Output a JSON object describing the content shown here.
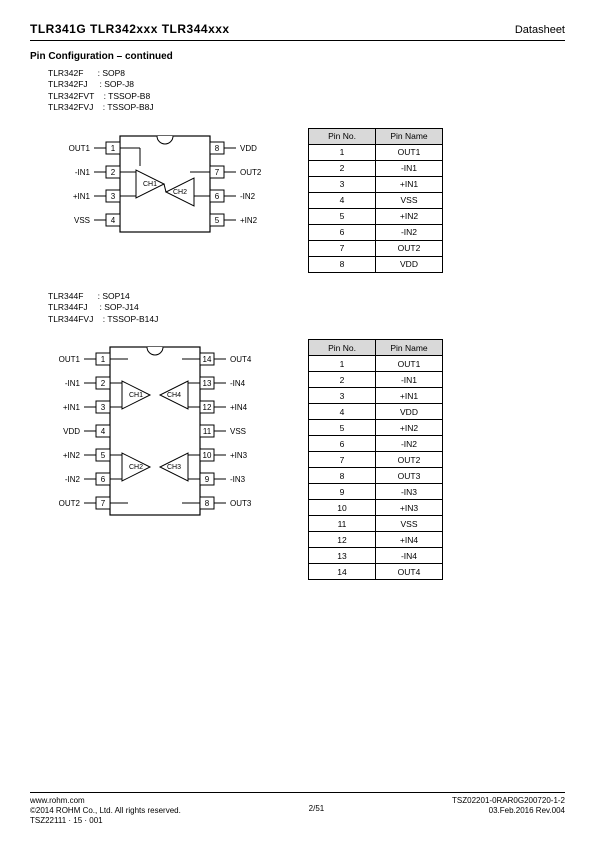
{
  "header": {
    "left": "TLR341G   TLR342xxx   TLR344xxx",
    "right": "Datasheet"
  },
  "section_title": "Pin Configuration – continued",
  "packages8": [
    {
      "part": "TLR342F",
      "pkg": "SOP8"
    },
    {
      "part": "TLR342FJ",
      "pkg": "SOP-J8"
    },
    {
      "part": "TLR342FVT",
      "pkg": "TSSOP-B8"
    },
    {
      "part": "TLR342FVJ",
      "pkg": "TSSOP-B8J"
    }
  ],
  "packages14": [
    {
      "part": "TLR344F",
      "pkg": "SOP14"
    },
    {
      "part": "TLR344FJ",
      "pkg": "SOP-J14"
    },
    {
      "part": "TLR344FVJ",
      "pkg": "TSSOP-B14J"
    }
  ],
  "pins8": {
    "headers": {
      "no": "Pin No.",
      "name": "Pin Name"
    },
    "rows": [
      {
        "no": "1",
        "name": "OUT1"
      },
      {
        "no": "2",
        "name": "-IN1"
      },
      {
        "no": "3",
        "name": "+IN1"
      },
      {
        "no": "4",
        "name": "VSS"
      },
      {
        "no": "5",
        "name": "+IN2"
      },
      {
        "no": "6",
        "name": "-IN2"
      },
      {
        "no": "7",
        "name": "OUT2"
      },
      {
        "no": "8",
        "name": "VDD"
      }
    ]
  },
  "pins14": {
    "headers": {
      "no": "Pin No.",
      "name": "Pin Name"
    },
    "rows": [
      {
        "no": "1",
        "name": "OUT1"
      },
      {
        "no": "2",
        "name": "-IN1"
      },
      {
        "no": "3",
        "name": "+IN1"
      },
      {
        "no": "4",
        "name": "VDD"
      },
      {
        "no": "5",
        "name": "+IN2"
      },
      {
        "no": "6",
        "name": "-IN2"
      },
      {
        "no": "7",
        "name": "OUT2"
      },
      {
        "no": "8",
        "name": "OUT3"
      },
      {
        "no": "9",
        "name": "-IN3"
      },
      {
        "no": "10",
        "name": "+IN3"
      },
      {
        "no": "11",
        "name": "VSS"
      },
      {
        "no": "12",
        "name": "+IN4"
      },
      {
        "no": "13",
        "name": "-IN4"
      },
      {
        "no": "14",
        "name": "OUT4"
      }
    ]
  },
  "diagram8": {
    "left": [
      {
        "n": "1",
        "lbl": "OUT1"
      },
      {
        "n": "2",
        "lbl": "-IN1"
      },
      {
        "n": "3",
        "lbl": "+IN1"
      },
      {
        "n": "4",
        "lbl": "VSS"
      }
    ],
    "right": [
      {
        "n": "8",
        "lbl": "VDD"
      },
      {
        "n": "7",
        "lbl": "OUT2"
      },
      {
        "n": "6",
        "lbl": "-IN2"
      },
      {
        "n": "5",
        "lbl": "+IN2"
      }
    ],
    "ch1": "CH1",
    "ch2": "CH2"
  },
  "diagram14": {
    "left": [
      {
        "n": "1",
        "lbl": "OUT1"
      },
      {
        "n": "2",
        "lbl": "-IN1"
      },
      {
        "n": "3",
        "lbl": "+IN1"
      },
      {
        "n": "4",
        "lbl": "VDD"
      },
      {
        "n": "5",
        "lbl": "+IN2"
      },
      {
        "n": "6",
        "lbl": "-IN2"
      },
      {
        "n": "7",
        "lbl": "OUT2"
      }
    ],
    "right": [
      {
        "n": "14",
        "lbl": "OUT4"
      },
      {
        "n": "13",
        "lbl": "-IN4"
      },
      {
        "n": "12",
        "lbl": "+IN4"
      },
      {
        "n": "11",
        "lbl": "VSS"
      },
      {
        "n": "10",
        "lbl": "+IN3"
      },
      {
        "n": "9",
        "lbl": "-IN3"
      },
      {
        "n": "8",
        "lbl": "OUT3"
      }
    ],
    "ch": {
      "ch1": "CH1",
      "ch2": "CH2",
      "ch3": "CH3",
      "ch4": "CH4"
    }
  },
  "footer": {
    "url": "www.rohm.com",
    "copyright": "©2014 ROHM Co., Ltd. All rights reserved.",
    "code": "TSZ22111 · 15 · 001",
    "page": "2/51",
    "docnum": "TSZ02201-0RAR0G200720-1-2",
    "rev": "03.Feb.2016 Rev.004"
  },
  "colors": {
    "header_bg": "#d9d9d9",
    "line": "#000000",
    "text": "#000000",
    "background": "#ffffff"
  }
}
